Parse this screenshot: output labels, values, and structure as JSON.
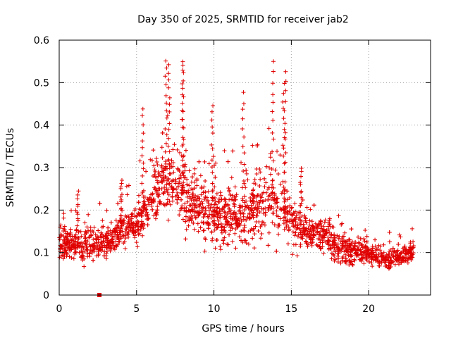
{
  "chart_data": {
    "type": "scatter",
    "title": "Day 350 of 2025, SRMTID for receiver jab2",
    "xlabel": "GPS time / hours",
    "ylabel": "SRMTID / TECUs",
    "xlim": [
      0,
      24
    ],
    "ylim": [
      0,
      0.6
    ],
    "xticks": [
      0,
      5,
      10,
      15,
      20
    ],
    "xtick_labels": [
      "0",
      "5",
      "10",
      "15",
      "20"
    ],
    "yticks": [
      0,
      0.1,
      0.2,
      0.3,
      0.4,
      0.5,
      0.6
    ],
    "ytick_labels": [
      "0",
      "0.1",
      "0.2",
      "0.3",
      "0.4",
      "0.5",
      "0.6"
    ],
    "grid": true,
    "marker": "+",
    "color": "#e00000",
    "series": [
      {
        "name": "SRMTID",
        "envelope_description": "Points represent per-epoch SRMTID values; the median trend is listed as [hour, median, spread] knots",
        "trend": [
          [
            0.0,
            0.12,
            0.04
          ],
          [
            1.0,
            0.12,
            0.05
          ],
          [
            2.0,
            0.12,
            0.05
          ],
          [
            3.0,
            0.12,
            0.05
          ],
          [
            4.0,
            0.16,
            0.05
          ],
          [
            5.0,
            0.16,
            0.05
          ],
          [
            5.5,
            0.2,
            0.08
          ],
          [
            6.0,
            0.24,
            0.09
          ],
          [
            7.0,
            0.28,
            0.11
          ],
          [
            8.0,
            0.24,
            0.1
          ],
          [
            9.0,
            0.21,
            0.07
          ],
          [
            10.0,
            0.19,
            0.1
          ],
          [
            11.0,
            0.18,
            0.08
          ],
          [
            12.0,
            0.19,
            0.09
          ],
          [
            13.0,
            0.21,
            0.1
          ],
          [
            14.0,
            0.23,
            0.11
          ],
          [
            15.0,
            0.18,
            0.08
          ],
          [
            16.0,
            0.14,
            0.05
          ],
          [
            17.0,
            0.15,
            0.06
          ],
          [
            18.0,
            0.11,
            0.05
          ],
          [
            19.0,
            0.1,
            0.04
          ],
          [
            20.0,
            0.1,
            0.03
          ],
          [
            21.0,
            0.08,
            0.03
          ],
          [
            22.0,
            0.09,
            0.03
          ],
          [
            22.8,
            0.1,
            0.03
          ]
        ],
        "x_range": [
          0.0,
          22.9
        ],
        "sample_count": 2400,
        "peaks": [
          [
            5.4,
            0.435
          ],
          [
            6.9,
            0.55
          ],
          [
            7.1,
            0.54
          ],
          [
            8.0,
            0.55
          ],
          [
            8.0,
            0.54
          ],
          [
            9.9,
            0.45
          ],
          [
            11.9,
            0.475
          ],
          [
            13.8,
            0.545
          ],
          [
            14.6,
            0.525
          ],
          [
            14.5,
            0.5
          ],
          [
            15.6,
            0.3
          ],
          [
            1.2,
            0.24
          ],
          [
            4.0,
            0.27
          ]
        ],
        "outliers": [
          [
            2.6,
            0.0
          ]
        ]
      }
    ]
  }
}
